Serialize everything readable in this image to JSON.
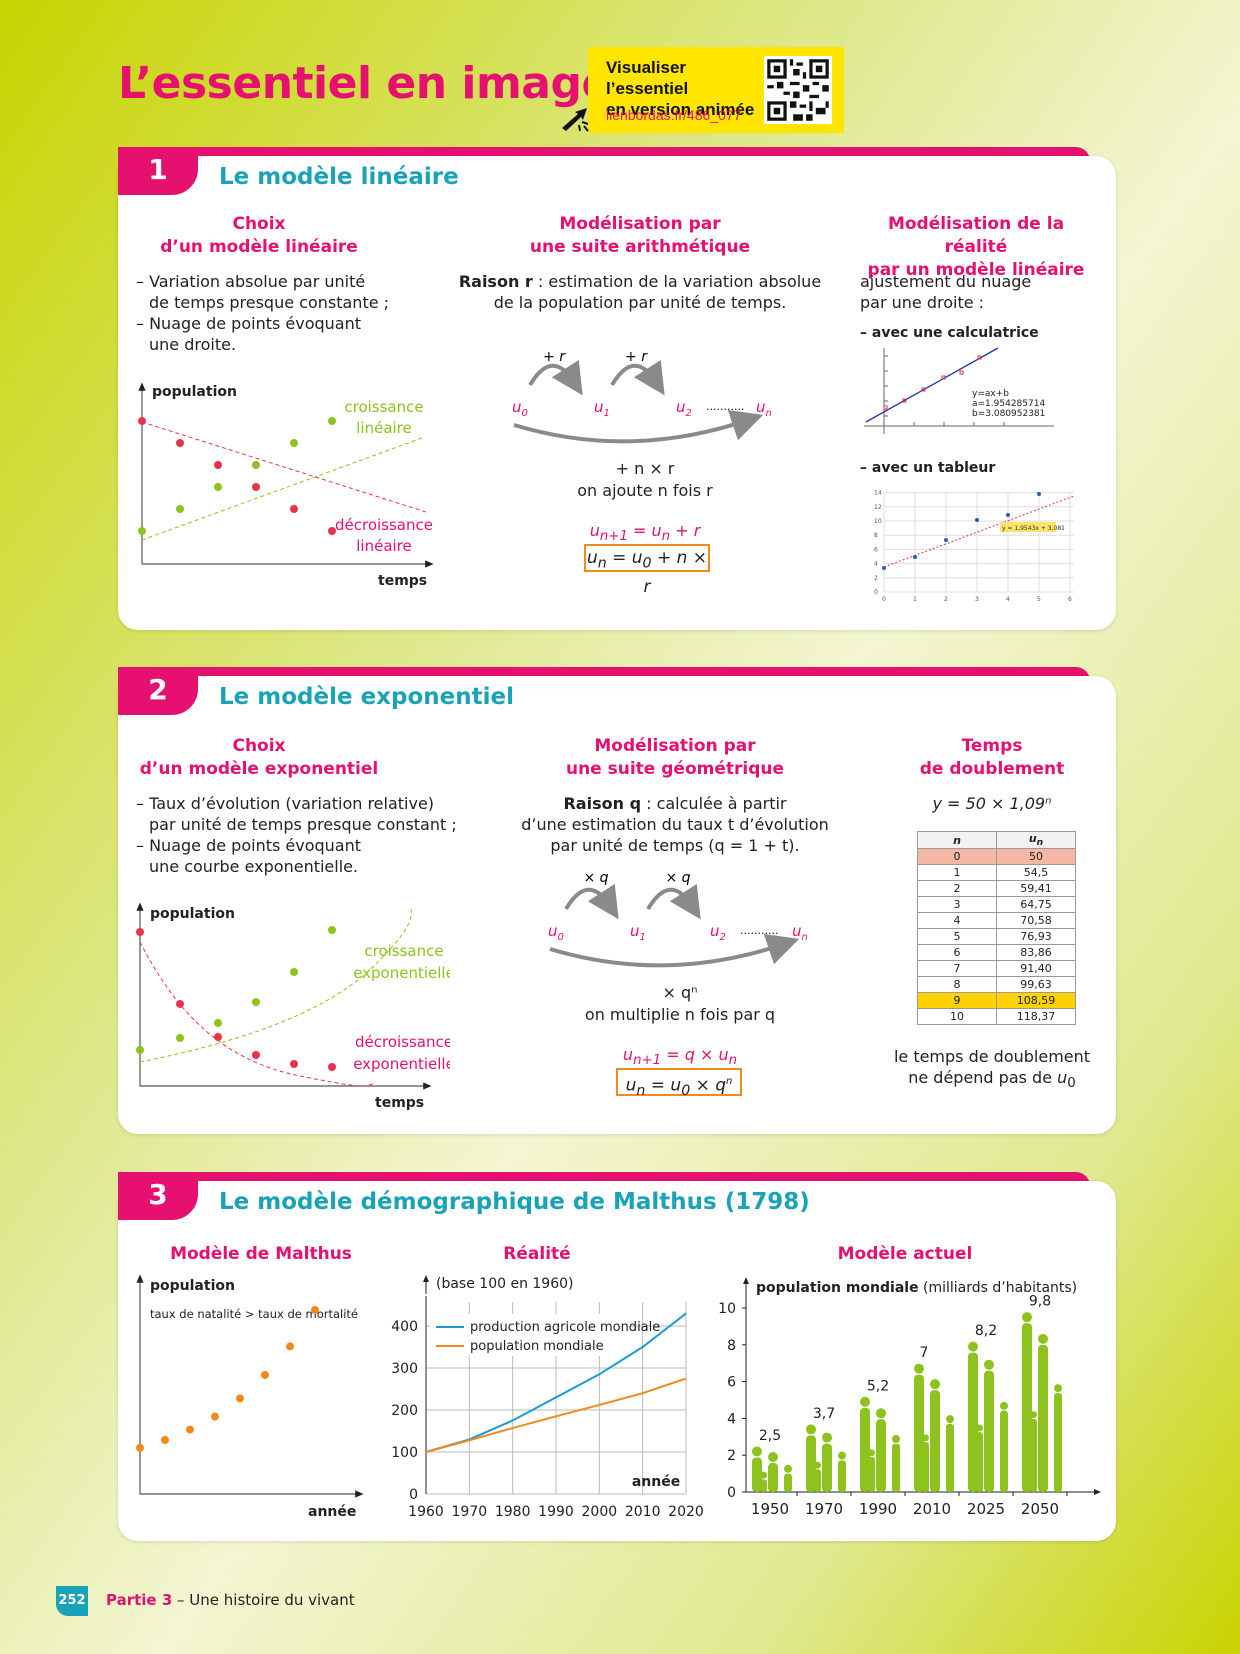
{
  "page": {
    "title": "L’essentiel en images",
    "promo": {
      "line1": "Visualiser l’essentiel",
      "line2": "en version animée",
      "link": "lienbordas.fr/486_077"
    },
    "footer": {
      "page_number": "252",
      "part": "Partie 3",
      "subject": " – Une histoire du vivant"
    }
  },
  "s1": {
    "num": "1",
    "title": "Le modèle linéaire",
    "col1": {
      "h1": "Choix",
      "h2": "d’un modèle linéaire",
      "l1": "– Variation absolue par unité",
      "l2": "de temps presque constante ;",
      "l3": "– Nuage de points évoquant",
      "l4": "une droite."
    },
    "graph": {
      "ylabel": "population",
      "xlabel": "temps",
      "inc1": "croissance",
      "inc2": "linéaire",
      "dec1": "décroissance",
      "dec2": "linéaire"
    },
    "col2": {
      "h1": "Modélisation par",
      "h2": "une suite arithmétique",
      "raison_b": "Raison r",
      "raison_t": " : estimation de la variation absolue",
      "l2": "de la population par unité de temps.",
      "arc1": "+ r",
      "arc2": "+ r",
      "u0": "u0",
      "u1": "u1",
      "u2": "u2",
      "dots": "...........",
      "un": "un",
      "total": "+ n × r",
      "caption": "on ajoute n fois r",
      "recur": "un+1 = un + r",
      "formula": "un = u0 + n × r"
    },
    "col3": {
      "h1": "Modélisation de la réalité",
      "h2": "par un modèle linéaire",
      "l1": "ajustement du nuage",
      "l2": "par une droite :",
      "calc": "– avec une calculatrice",
      "calc_screen": [
        "y=ax+b",
        "a=1.954285714",
        "b=3.080952381"
      ],
      "tab": "– avec un tableur",
      "tab_eq": "y = 1,9543x + 3,081",
      "tab_yticks": [
        "0",
        "2",
        "4",
        "6",
        "8",
        "10",
        "12",
        "14"
      ],
      "tab_xticks": [
        "0",
        "1",
        "2",
        "3",
        "4",
        "5",
        "6"
      ]
    }
  },
  "s2": {
    "num": "2",
    "title": "Le modèle exponentiel",
    "col1": {
      "h1": "Choix",
      "h2": "d’un modèle exponentiel",
      "l1": "– Taux d’évolution (variation relative)",
      "l2": "par unité de temps presque constant ;",
      "l3": "– Nuage de points évoquant",
      "l4": "une courbe exponentielle."
    },
    "graph": {
      "ylabel": "population",
      "xlabel": "temps",
      "inc1": "croissance",
      "inc2": "exponentielle",
      "dec1": "décroissance",
      "dec2": "exponentielle"
    },
    "col2": {
      "h1": "Modélisation par",
      "h2": "une suite géométrique",
      "raison_b": "Raison q",
      "raison_t": " : calculée à partir",
      "l2": "d’une estimation du taux t d’évolution",
      "l3": "par unité de temps (q = 1 + t).",
      "arc1": "× q",
      "arc2": "× q",
      "total": "× qⁿ",
      "caption": "on multiplie n fois par q",
      "recur": "un+1 = q × un",
      "formula": "un = u0 × qⁿ"
    },
    "col3": {
      "h1": "Temps",
      "h2": "de doublement",
      "equation": "y = 50 × 1,09ⁿ",
      "table_head": [
        "n",
        "un"
      ],
      "table": [
        [
          "0",
          "50"
        ],
        [
          "1",
          "54,5"
        ],
        [
          "2",
          "59,41"
        ],
        [
          "3",
          "64,75"
        ],
        [
          "4",
          "70,58"
        ],
        [
          "5",
          "76,93"
        ],
        [
          "6",
          "83,86"
        ],
        [
          "7",
          "91,40"
        ],
        [
          "8",
          "99,63"
        ],
        [
          "9",
          "108,59"
        ],
        [
          "10",
          "118,37"
        ]
      ],
      "c1": "le temps de doublement",
      "c2": "ne dépend pas de u0"
    }
  },
  "s3": {
    "num": "3",
    "title": "Le modèle démographique de Malthus (1798)",
    "malthus": {
      "h": "Modèle de Malthus",
      "ylabel": "population",
      "note": "taux de natalité > taux de mortalité",
      "xlabel": "année"
    },
    "reality": {
      "h": "Réalité",
      "ylabel": "(base 100 en 1960)",
      "xlabel": "année",
      "legend1": "production agricole mondiale",
      "legend2": "population mondiale",
      "yticks": [
        "0",
        "100",
        "200",
        "300",
        "400"
      ],
      "xticks": [
        "1960",
        "1970",
        "1980",
        "1990",
        "2000",
        "2010",
        "2020"
      ]
    },
    "actual": {
      "h": "Modèle actuel",
      "ylabel_b": "population mondiale",
      "ylabel_t": " (milliards d’habitants)",
      "yticks": [
        "0",
        "2",
        "4",
        "6",
        "8",
        "10"
      ],
      "years": [
        "1950",
        "1970",
        "1990",
        "2010",
        "2025",
        "2050"
      ],
      "values": [
        "2,5",
        "3,7",
        "5,2",
        "7",
        "8,2",
        "9,8"
      ]
    }
  },
  "chart_data": [
    {
      "type": "scatter",
      "title": "",
      "xlabel": "temps",
      "ylabel": "population",
      "series": [
        {
          "name": "croissance linéaire",
          "values": [
            1,
            2,
            3,
            4,
            5,
            6
          ]
        },
        {
          "name": "décroissance linéaire",
          "values": [
            6,
            5,
            4,
            3,
            2,
            1
          ]
        }
      ]
    },
    {
      "type": "scatter",
      "title": "",
      "xlabel": "temps",
      "ylabel": "population",
      "series": [
        {
          "name": "croissance exponentielle",
          "values": [
            1,
            1.4,
            1.9,
            2.6,
            3.6,
            5
          ]
        },
        {
          "name": "décroissance exponentielle",
          "values": [
            5,
            2.6,
            1.5,
            0.9,
            0.6,
            0.5
          ]
        }
      ]
    },
    {
      "type": "line",
      "title": "Réalité",
      "ylabel": "(base 100 en 1960)",
      "xlabel": "année",
      "x": [
        1960,
        1970,
        1980,
        1990,
        2000,
        2010,
        2020
      ],
      "ylim": [
        0,
        430
      ],
      "series": [
        {
          "name": "production agricole mondiale",
          "color": "#1b9ad6",
          "values": [
            100,
            130,
            175,
            230,
            285,
            350,
            430
          ]
        },
        {
          "name": "population mondiale",
          "color": "#f08a1c",
          "values": [
            100,
            128,
            157,
            185,
            212,
            240,
            275
          ]
        }
      ]
    },
    {
      "type": "bar",
      "title": "Modèle actuel",
      "ylabel": "population mondiale (milliards d’habitants)",
      "categories": [
        "1950",
        "1970",
        "1990",
        "2010",
        "2025",
        "2050"
      ],
      "values": [
        2.5,
        3.7,
        5.2,
        7,
        8.2,
        9.8
      ],
      "ylim": [
        0,
        10
      ]
    }
  ],
  "colors": {
    "magenta": "#e5106f",
    "teal": "#1aa3b8",
    "green": "#8dc21f",
    "red": "#e8334a",
    "orange": "#f08a1c",
    "blue": "#1b9ad6"
  }
}
